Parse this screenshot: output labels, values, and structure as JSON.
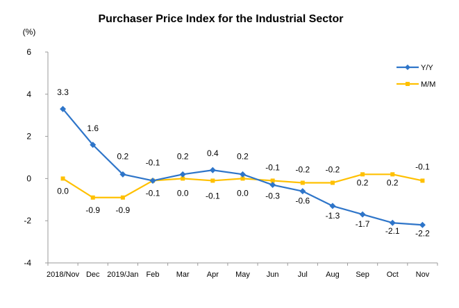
{
  "chart_data": {
    "type": "line",
    "title": "Purchaser Price Index for the Industrial  Sector",
    "unit_label": "(%)",
    "xlabel": "",
    "ylabel": "",
    "ylim": [
      -4,
      6
    ],
    "yticks": [
      "6",
      "4",
      "2",
      "0",
      "-2",
      "-4"
    ],
    "grid": false,
    "legend_position": "top-right",
    "categories": [
      "2018/Nov",
      "Dec",
      "2019/Jan",
      "Feb",
      "Mar",
      "Apr",
      "May",
      "Jun",
      "Jul",
      "Aug",
      "Sep",
      "Oct",
      "Nov"
    ],
    "series": [
      {
        "name": "Y/Y",
        "color": "#2E75C9",
        "marker": "diamond",
        "values": [
          3.3,
          1.6,
          0.2,
          -0.1,
          0.2,
          0.4,
          0.2,
          -0.3,
          -0.6,
          -1.3,
          -1.7,
          -2.1,
          -2.2
        ],
        "labels": [
          "3.3",
          "1.6",
          "0.2",
          "-0.1",
          "0.2",
          "0.4",
          "0.2",
          "-0.3",
          "-0.6",
          "-1.3",
          "-1.7",
          "-2.1",
          "-2.2"
        ]
      },
      {
        "name": "M/M",
        "color": "#FFC000",
        "marker": "square",
        "values": [
          0.0,
          -0.9,
          -0.9,
          -0.1,
          0.0,
          -0.1,
          0.0,
          -0.1,
          -0.2,
          -0.2,
          0.2,
          0.2,
          -0.1
        ],
        "labels": [
          "0.0",
          "-0.9",
          "-0.9",
          "-0.1",
          "0.0",
          "-0.1",
          "0.0",
          "-0.1",
          "-0.2",
          "-0.2",
          "0.2",
          "0.2",
          "-0.1"
        ]
      }
    ]
  }
}
